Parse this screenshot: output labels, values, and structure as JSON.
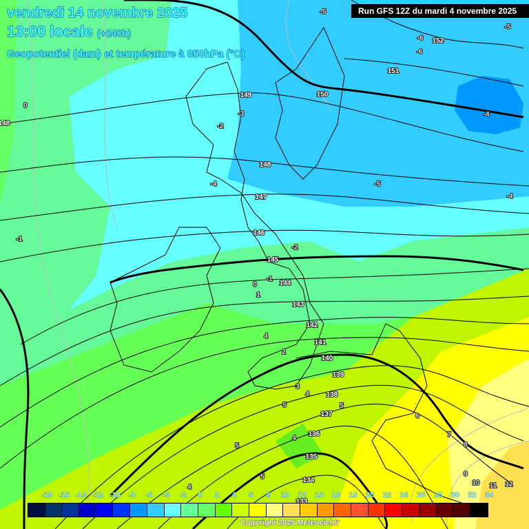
{
  "header": {
    "date": "vendredi 14 novembre 2025",
    "time": "13:00 locale",
    "lead": "(+240h)",
    "subtitle": "Geopotentiel (dam) et température à 850hPa (°C)",
    "run": "Run GFS 12Z du mardi 4 novembre 2025"
  },
  "legend": {
    "labels": [
      "-18",
      "-16",
      "-14",
      "-12",
      "-10",
      "-8",
      "-6",
      "-4",
      "-2",
      "0",
      "2",
      "4",
      "6",
      "8",
      "10",
      "12",
      "14",
      "16",
      "18",
      "20",
      "22",
      "24",
      "26",
      "28",
      "30",
      "32",
      "34"
    ],
    "colors": [
      "#001040",
      "#003366",
      "#003399",
      "#0000cc",
      "#0000ff",
      "#0033ff",
      "#0099ff",
      "#33ccff",
      "#66ffff",
      "#66ff99",
      "#66ff66",
      "#66ff00",
      "#ccff00",
      "#ffff00",
      "#ffff80",
      "#ffe050",
      "#ffcc00",
      "#ff9900",
      "#ff6600",
      "#ff5030",
      "#ff3300",
      "#ff0000",
      "#cc0000",
      "#990000",
      "#660000",
      "#500000",
      "#000000"
    ]
  },
  "geopotential_labels": [
    "152",
    "151",
    "150",
    "149",
    "148",
    "148",
    "147",
    "146",
    "145",
    "144",
    "143",
    "142",
    "141",
    "140",
    "139",
    "138",
    "137",
    "136",
    "135",
    "134",
    "133"
  ],
  "temperature_labels": [
    "-5",
    "-5",
    "-6",
    "-5",
    "-6",
    "0",
    "-3",
    "-2",
    "-4",
    "-4",
    "-4",
    "-1",
    "-2",
    "-1",
    "0",
    "1",
    "4",
    "2",
    "3",
    "4",
    "5",
    "5",
    "6",
    "7",
    "8",
    "5",
    "4",
    "5",
    "4",
    "9",
    "10",
    "11",
    "12"
  ],
  "footer": {
    "copyright": "Copyright 2025 Meteociel.fr"
  }
}
